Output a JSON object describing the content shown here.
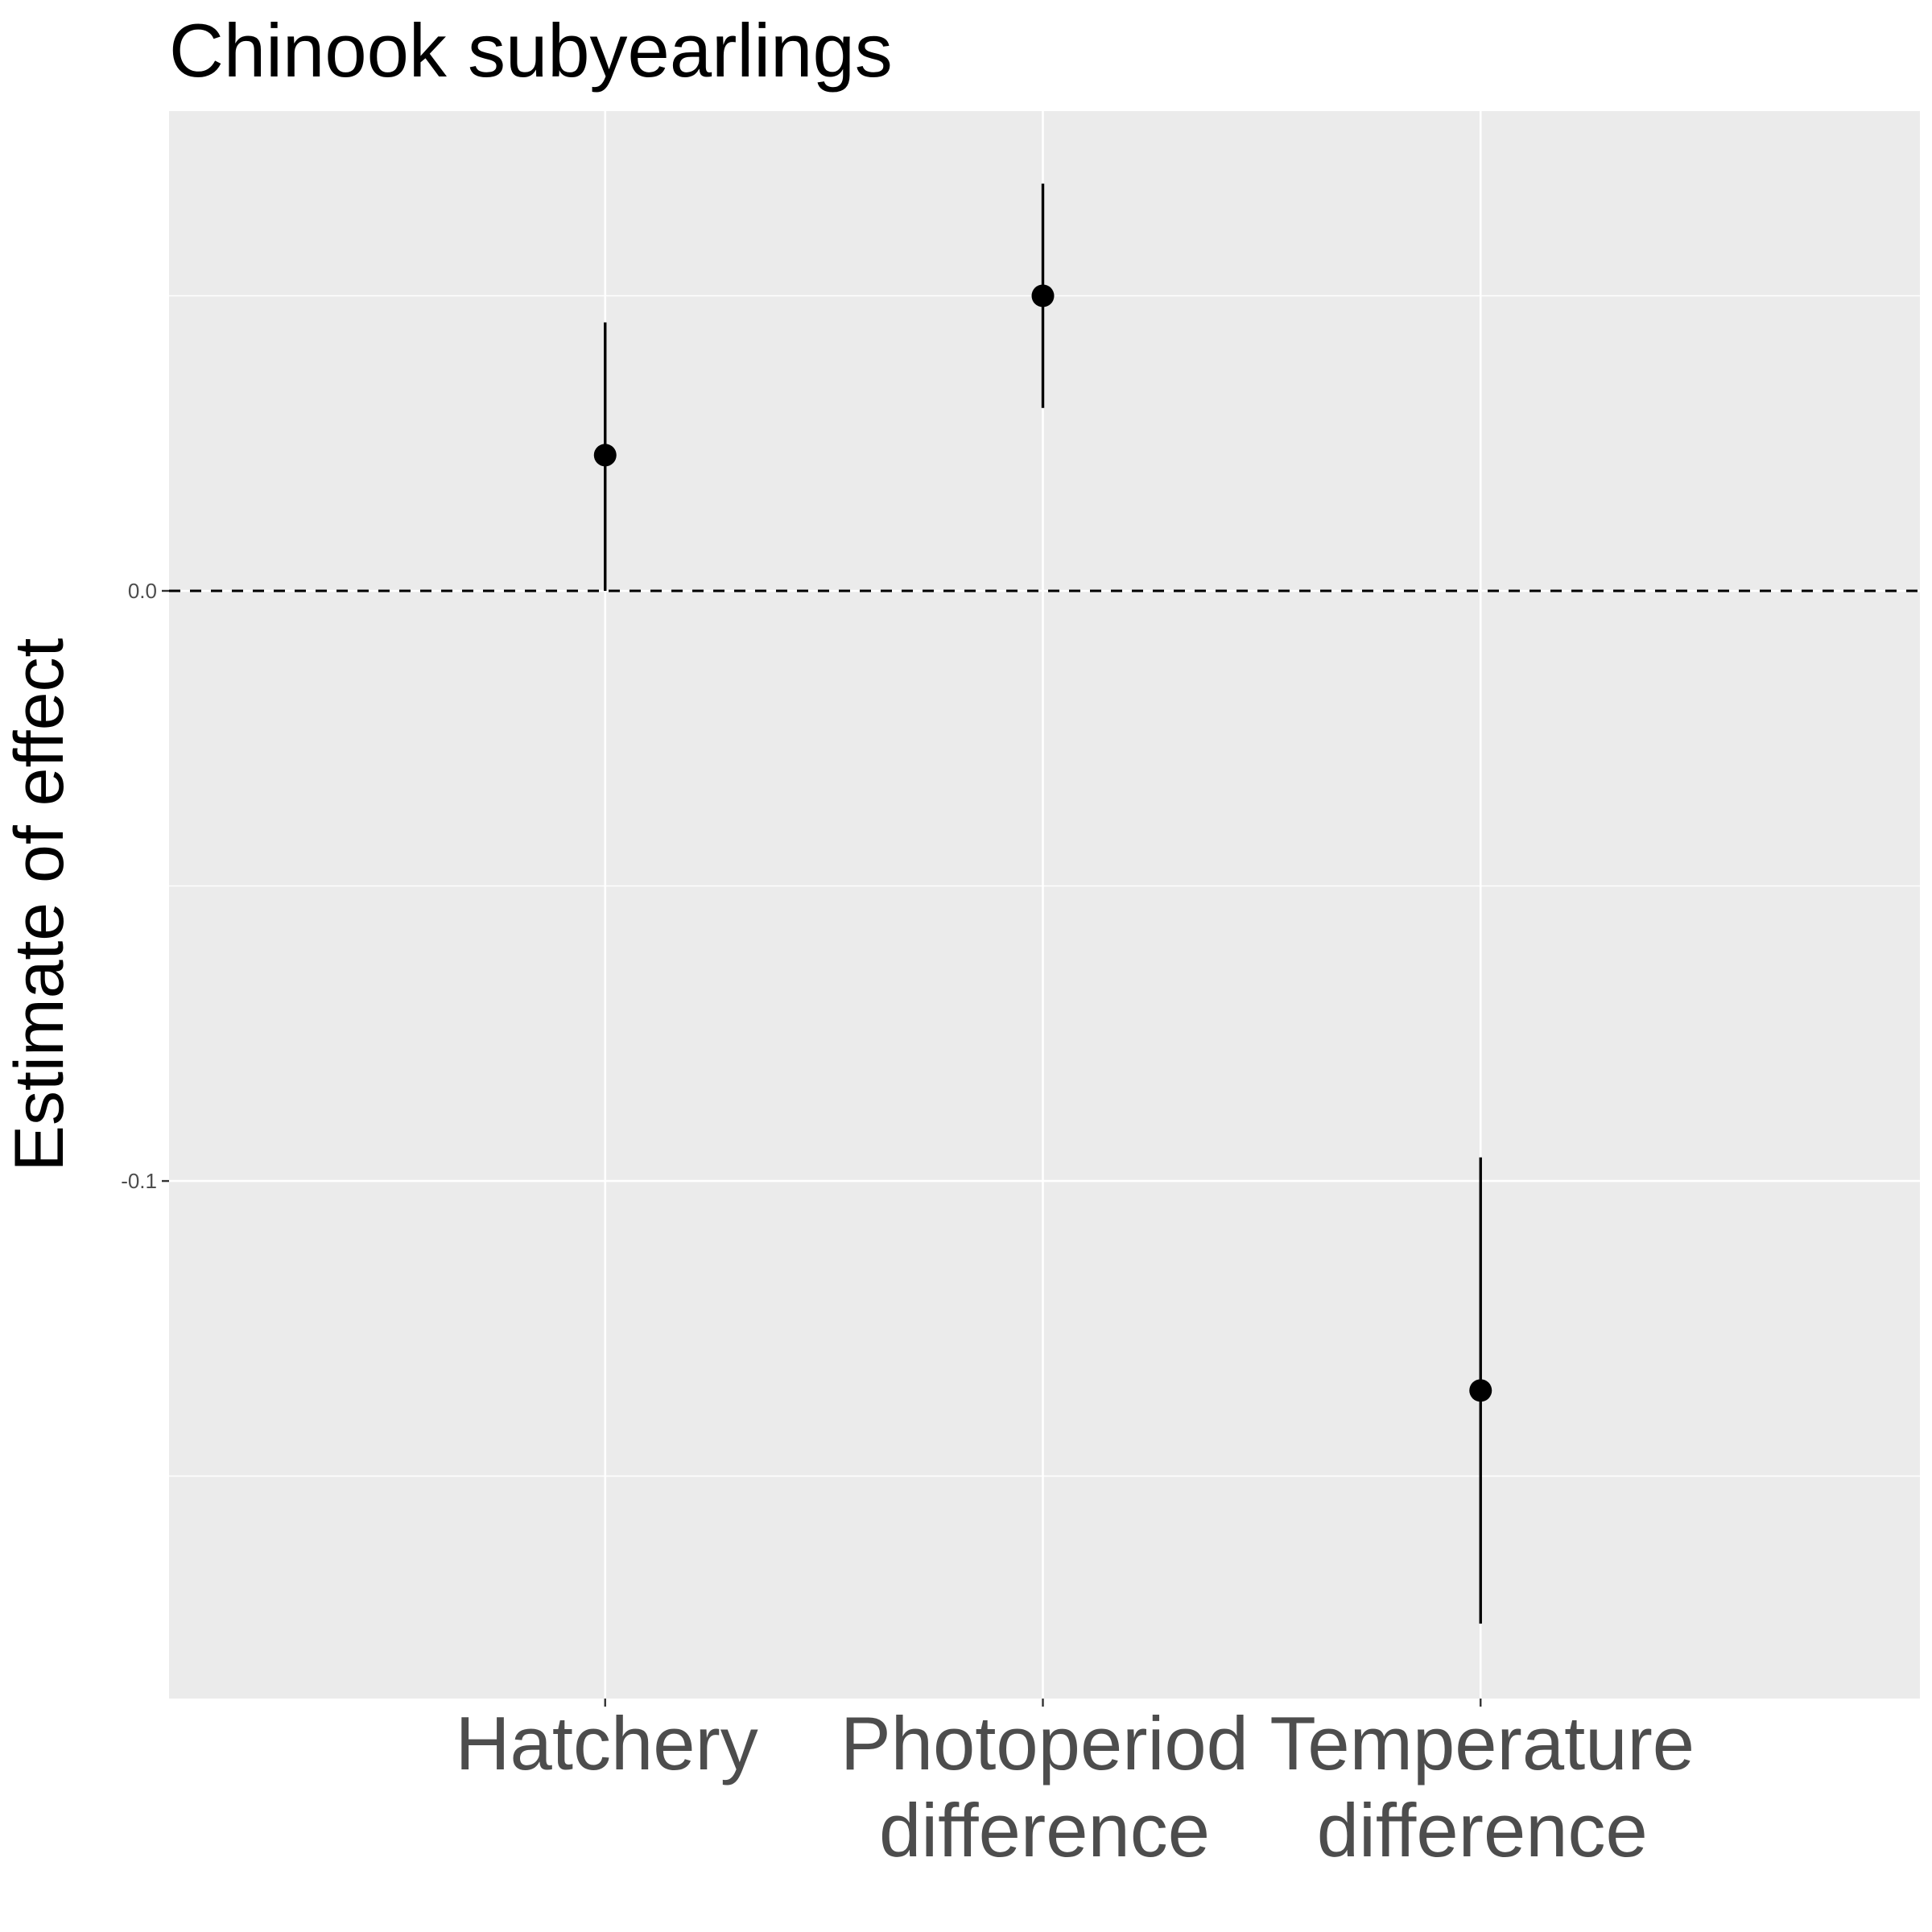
{
  "chart_data": {
    "type": "scatter",
    "title": "Chinook subyearlings",
    "xlabel": "",
    "ylabel": "Estimate of effect",
    "categories": [
      [
        "Hatchery"
      ],
      [
        "Photoperiod",
        "difference"
      ],
      [
        "Temperature",
        "difference"
      ]
    ],
    "points": [
      {
        "estimate": 0.023,
        "lower": 0.0,
        "upper": 0.0455
      },
      {
        "estimate": 0.05,
        "lower": 0.031,
        "upper": 0.069
      },
      {
        "estimate": -0.1355,
        "lower": -0.175,
        "upper": -0.096
      }
    ],
    "yticks": [
      0.0,
      -0.1
    ],
    "ytick_labels": [
      "0.0",
      "-0.1"
    ],
    "ylim": [
      -0.1877,
      0.0813
    ],
    "reference_line": {
      "y": 0.0,
      "style": "dashed"
    },
    "grid": true,
    "legend": "none",
    "colors": {
      "panel": "#ebebeb",
      "grid": "#ffffff",
      "marks": "#000000",
      "tick_text": "#4d4d4d"
    }
  }
}
